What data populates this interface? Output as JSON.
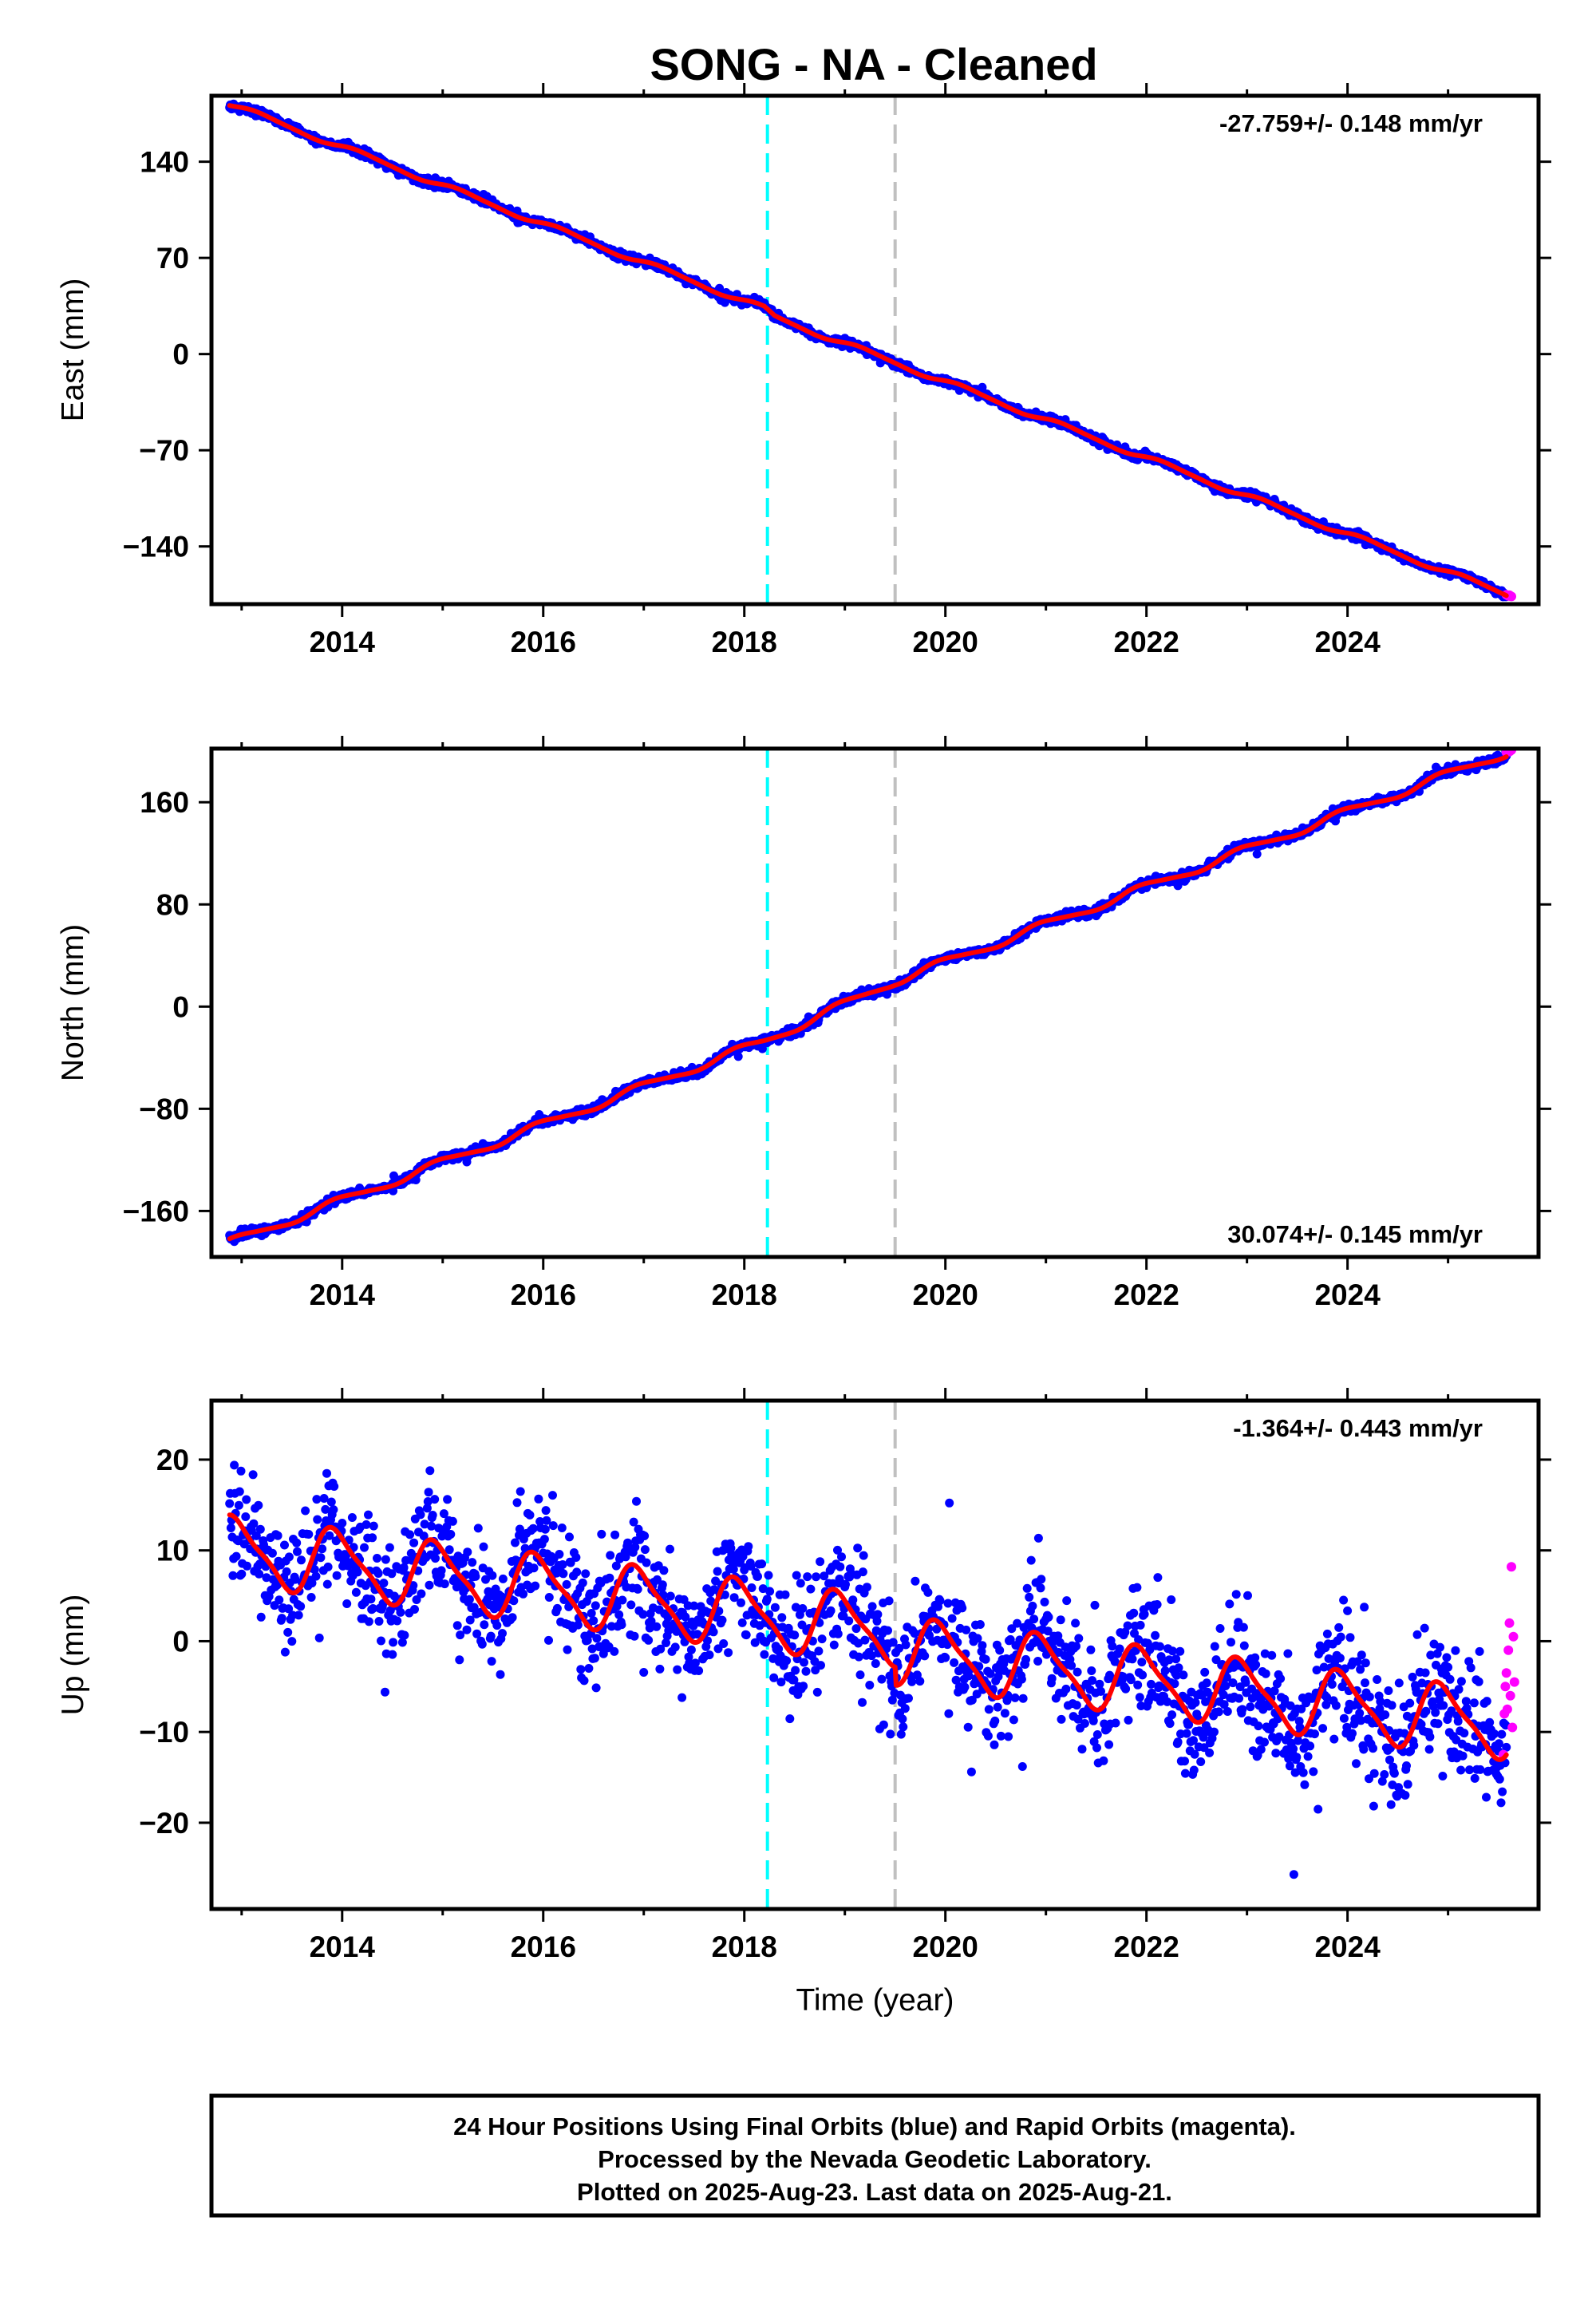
{
  "title": "SONG  - NA - Cleaned",
  "caption": {
    "lines": [
      "24 Hour Positions Using Final Orbits (blue) and Rapid Orbits (magenta).",
      "Processed by the Nevada Geodetic Laboratory.",
      "Plotted on 2025-Aug-23. Last data on 2025-Aug-21."
    ]
  },
  "colors": {
    "final_orbit_points": "#0000ff",
    "rapid_orbit_points": "#ff00ff",
    "model_fit": "#ff0000",
    "event_line_cyan": "#00ffff",
    "event_line_gray": "#c0c0c0"
  },
  "chart_data": [
    {
      "type": "scatter",
      "ylabel": "East (mm)",
      "xlabel": "",
      "rate_label": "-27.759+/- 0.148 mm/yr",
      "rate_position": "top-right",
      "xlim": [
        2012.7,
        2025.9
      ],
      "ylim": [
        -182,
        188
      ],
      "x_ticks": [
        2014,
        2016,
        2018,
        2020,
        2022,
        2024
      ],
      "x_tick_labels": [
        "2014",
        "2016",
        "2018",
        "2020",
        "2022",
        "2024"
      ],
      "y_ticks": [
        -140,
        -70,
        0,
        70,
        140
      ],
      "y_tick_labels": [
        "−140",
        "−70",
        "0",
        "70",
        "140"
      ],
      "model": {
        "ref_year": 2019.0,
        "offset": 12.1,
        "rate": -27.759,
        "annual_amp": 1.8,
        "annual_phase": 0.3,
        "semiannual_amp": 0.4,
        "steps": [],
        "knots": [
          [
            2012.88,
            182
          ],
          [
            2018.2,
            33
          ],
          [
            2018.3,
            27
          ],
          [
            2025.62,
            -176
          ]
        ]
      },
      "noise_mm": 1.4,
      "rapid_points": [
        [
          2025.58,
          -175.2
        ],
        [
          2025.6,
          -176.0
        ],
        [
          2025.61,
          -175.5
        ],
        [
          2025.63,
          -176.4
        ]
      ],
      "event_lines": [
        {
          "x": 2018.23,
          "color": "#00ffff"
        },
        {
          "x": 2019.5,
          "color": "#c0c0c0"
        }
      ],
      "grid": false
    },
    {
      "type": "scatter",
      "ylabel": "North (mm)",
      "xlabel": "",
      "rate_label": "30.074+/- 0.145 mm/yr",
      "rate_position": "bottom-right",
      "xlim": [
        2012.7,
        2025.9
      ],
      "ylim": [
        -196,
        202
      ],
      "x_ticks": [
        2014,
        2016,
        2018,
        2020,
        2022,
        2024
      ],
      "x_tick_labels": [
        "2014",
        "2016",
        "2018",
        "2020",
        "2022",
        "2024"
      ],
      "y_ticks": [
        -160,
        -80,
        0,
        80,
        160
      ],
      "y_tick_labels": [
        "−160",
        "−80",
        "0",
        "80",
        "160"
      ],
      "model": {
        "ref_year": 2019.0,
        "offset": -5.3,
        "rate": 30.074,
        "annual_amp": 3.2,
        "annual_phase": 1.7,
        "semiannual_amp": 0.6,
        "steps": [],
        "knots": [
          [
            2012.88,
            -185
          ],
          [
            2018.2,
            -27
          ],
          [
            2019.5,
            20
          ],
          [
            2025.62,
            200
          ]
        ]
      },
      "noise_mm": 1.6,
      "rapid_points": [
        [
          2025.58,
          199.0
        ],
        [
          2025.6,
          200.2
        ],
        [
          2025.61,
          199.6
        ],
        [
          2025.63,
          200.8
        ]
      ],
      "event_lines": [
        {
          "x": 2018.23,
          "color": "#00ffff"
        },
        {
          "x": 2019.5,
          "color": "#c0c0c0"
        }
      ],
      "grid": false
    },
    {
      "type": "scatter",
      "ylabel": "Up (mm)",
      "xlabel": "Time (year)",
      "rate_label": "-1.364+/- 0.443 mm/yr",
      "rate_position": "top-right",
      "xlim": [
        2012.7,
        2025.9
      ],
      "ylim": [
        -29.5,
        26.5
      ],
      "x_ticks": [
        2014,
        2016,
        2018,
        2020,
        2022,
        2024
      ],
      "x_tick_labels": [
        "2014",
        "2016",
        "2018",
        "2020",
        "2022",
        "2024"
      ],
      "y_ticks": [
        -20,
        -10,
        0,
        10,
        20
      ],
      "y_tick_labels": [
        "−20",
        "−10",
        "0",
        "10",
        "20"
      ],
      "model": {
        "ref_year": 2019.0,
        "offset": 1.7,
        "rate": -1.364,
        "annual_amp": 3.5,
        "annual_phase": 1.9,
        "semiannual_amp": 0.9,
        "steps": [
          [
            2019.5,
            -2.0
          ]
        ],
        "knots": []
      },
      "noise_mm": 3.2,
      "rapid_points": [
        [
          2025.55,
          -12.5
        ],
        [
          2025.56,
          -8.0
        ],
        [
          2025.57,
          -5.0
        ],
        [
          2025.58,
          -3.5
        ],
        [
          2025.59,
          -7.5
        ],
        [
          2025.6,
          -1.0
        ],
        [
          2025.61,
          2.0
        ],
        [
          2025.62,
          -6.0
        ],
        [
          2025.63,
          8.2
        ],
        [
          2025.64,
          -9.5
        ],
        [
          2025.65,
          0.5
        ],
        [
          2025.66,
          -4.5
        ]
      ],
      "event_lines": [
        {
          "x": 2018.23,
          "color": "#00ffff"
        },
        {
          "x": 2019.5,
          "color": "#c0c0c0"
        }
      ],
      "grid": false
    }
  ]
}
